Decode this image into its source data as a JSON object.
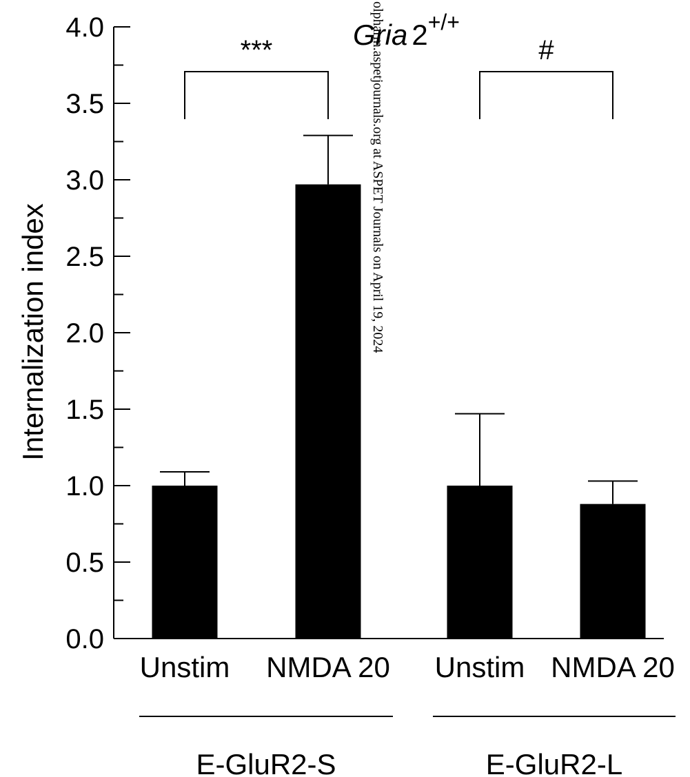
{
  "chart_data": {
    "type": "bar",
    "title_italic": "Gria",
    "title_base": "2",
    "title_sup": "+/+",
    "ylabel": "Internalization index",
    "ylim": [
      0,
      4.0
    ],
    "y_major_ticks": [
      0,
      0.5,
      1.0,
      1.5,
      2.0,
      2.5,
      3.0,
      3.5,
      4.0
    ],
    "y_tick_labels": [
      "0.0",
      "0.5",
      "1.0",
      "1.5",
      "2.0",
      "2.5",
      "3.0",
      "3.5",
      "4.0"
    ],
    "y_minor_step": 0.25,
    "categories": [
      "Unstim",
      "NMDA 20",
      "Unstim",
      "NMDA 20"
    ],
    "values": [
      1.0,
      2.97,
      1.0,
      0.88
    ],
    "errors": [
      0.09,
      0.32,
      0.47,
      0.15
    ],
    "bar_color": "#000000",
    "groups": [
      {
        "label": "E-GluR2-S",
        "categories": [
          0,
          1
        ]
      },
      {
        "label": "E-GluR2-L",
        "categories": [
          2,
          3
        ]
      }
    ],
    "significance": [
      {
        "label": "***",
        "from": 0,
        "to": 1
      },
      {
        "label": "#",
        "from": 2,
        "to": 3
      }
    ],
    "grid": false
  },
  "watermark": "olpharm.aspetjournals.org at ASPET Journals on April 19, 2024"
}
